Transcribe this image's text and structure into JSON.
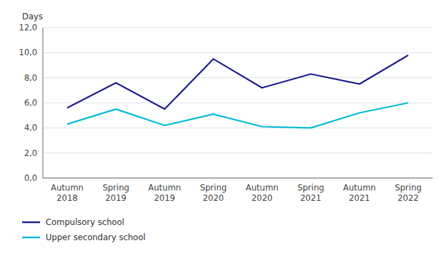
{
  "chart_data": {
    "type": "line",
    "y_label": "Days",
    "categories": [
      "Autumn\n2018",
      "Spring\n2019",
      "Autumn\n2019",
      "Spring\n2020",
      "Autumn\n2020",
      "Spring\n2021",
      "Autumn\n2021",
      "Spring\n2022"
    ],
    "series": [
      {
        "name": "Compulsory school",
        "color": "#1a1a8c",
        "values": [
          5.6,
          7.6,
          5.5,
          9.5,
          7.2,
          8.3,
          7.5,
          9.8
        ]
      },
      {
        "name": "Upper secondary school",
        "color": "#00bcd4",
        "values": [
          4.3,
          5.5,
          4.2,
          5.1,
          4.1,
          4.0,
          5.2,
          6.0
        ]
      }
    ],
    "ylim": [
      0,
      12
    ],
    "yticks": [
      {
        "value": 0,
        "label": "0,0"
      },
      {
        "value": 2,
        "label": "2,0"
      },
      {
        "value": 4,
        "label": "4,0"
      },
      {
        "value": 6,
        "label": "6,0"
      },
      {
        "value": 8,
        "label": "8,0"
      },
      {
        "value": 10,
        "label": "10,0"
      },
      {
        "value": 12,
        "label": "12,0"
      }
    ],
    "grid": true,
    "legend": "bottom"
  }
}
